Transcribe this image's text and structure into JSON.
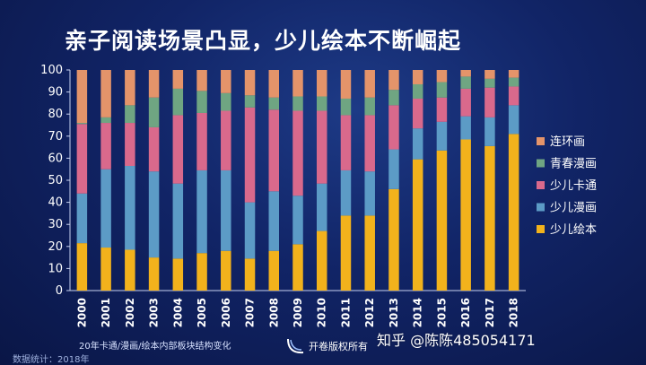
{
  "title": "亲子阅读场景凸显，少儿绘本不断崛起",
  "caption": "20年卡通/漫画/绘本内部板块结构变化",
  "source": "数据统计：2018年",
  "copyright": "开卷版权所有",
  "watermark": "知乎 @陈陈485054171",
  "icons": {
    "copyright_logo": "kaijuan-logo-icon"
  },
  "chart_data": {
    "type": "bar",
    "stacked": true,
    "title": "亲子阅读场景凸显，少儿绘本不断崛起",
    "xlabel": "",
    "ylabel": "",
    "ylim": [
      0,
      100
    ],
    "yticks": [
      0,
      10,
      20,
      30,
      40,
      50,
      60,
      70,
      80,
      90,
      100
    ],
    "grid": false,
    "legend_position": "right",
    "categories": [
      "2000",
      "2001",
      "2002",
      "2003",
      "2004",
      "2005",
      "2006",
      "2007",
      "2008",
      "2009",
      "2010",
      "2011",
      "2012",
      "2013",
      "2014",
      "2015",
      "2016",
      "2017",
      "2018"
    ],
    "series": [
      {
        "name": "少儿绘本",
        "color": "#f2b21c",
        "values": [
          21.5,
          19.5,
          18.5,
          15,
          14.5,
          17,
          18,
          14.5,
          18,
          21,
          27,
          34,
          34,
          46,
          59.5,
          63.5,
          68.5,
          65.5,
          71
        ]
      },
      {
        "name": "少儿漫画",
        "color": "#5c9bc6",
        "values": [
          22.5,
          35.5,
          38,
          39,
          34,
          37.5,
          36.5,
          25.5,
          27,
          22,
          21.5,
          20.5,
          20,
          18,
          14,
          13,
          10.5,
          13,
          13
        ]
      },
      {
        "name": "少儿卡通",
        "color": "#d9698c",
        "values": [
          31.5,
          21,
          19.5,
          20,
          31,
          26,
          27,
          43,
          37,
          38.5,
          33,
          25,
          25.5,
          20,
          13.5,
          11,
          12.5,
          13.5,
          8.5
        ]
      },
      {
        "name": "青春漫画",
        "color": "#6fa582",
        "values": [
          0.5,
          2.5,
          8,
          13.5,
          12,
          10,
          8,
          5.5,
          5.5,
          6.5,
          6.5,
          7.5,
          8,
          7,
          6.5,
          7,
          5.5,
          4,
          4
        ]
      },
      {
        "name": "连环画",
        "color": "#e4946a",
        "values": [
          24,
          21.5,
          16,
          12.5,
          8.5,
          9.5,
          10.5,
          11.5,
          12.5,
          12,
          12,
          13,
          12.5,
          9,
          6.5,
          5.5,
          3,
          4,
          3.5
        ]
      }
    ]
  }
}
